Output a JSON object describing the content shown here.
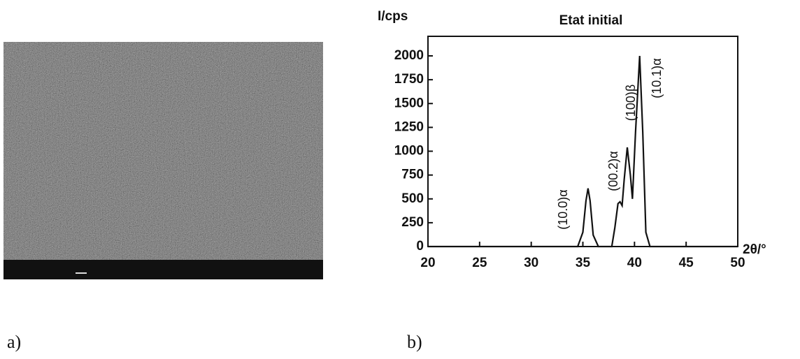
{
  "panel_a": {
    "label": "a)"
  },
  "panel_b": {
    "label": "b)"
  },
  "chart_data": {
    "type": "line",
    "title": "Etat initial",
    "y_label": "I/cps",
    "x_label": "2θ/°",
    "x": [
      20,
      34.5,
      35,
      35.3,
      35.5,
      35.7,
      36,
      36.5,
      37.8,
      38.1,
      38.4,
      38.6,
      38.8,
      39.0,
      39.3,
      39.6,
      39.8,
      40.1,
      40.5,
      40.8,
      41.1,
      41.5,
      50
    ],
    "series": [
      {
        "color": "#111111",
        "values": [
          0,
          0,
          150,
          480,
          610,
          480,
          120,
          0,
          0,
          200,
          450,
          470,
          430,
          700,
          1040,
          750,
          500,
          1200,
          2000,
          1200,
          150,
          0,
          0
        ]
      }
    ],
    "xlim": [
      20,
      50
    ],
    "xticks": [
      20,
      25,
      30,
      35,
      40,
      45,
      50
    ],
    "ylim": [
      0,
      2000
    ],
    "yticks": [
      0,
      250,
      500,
      750,
      1000,
      1250,
      1500,
      1750,
      2000
    ],
    "annotations": [
      "(10.0)α",
      "(00.2)α",
      "(100)β",
      "(10.1)α"
    ]
  }
}
